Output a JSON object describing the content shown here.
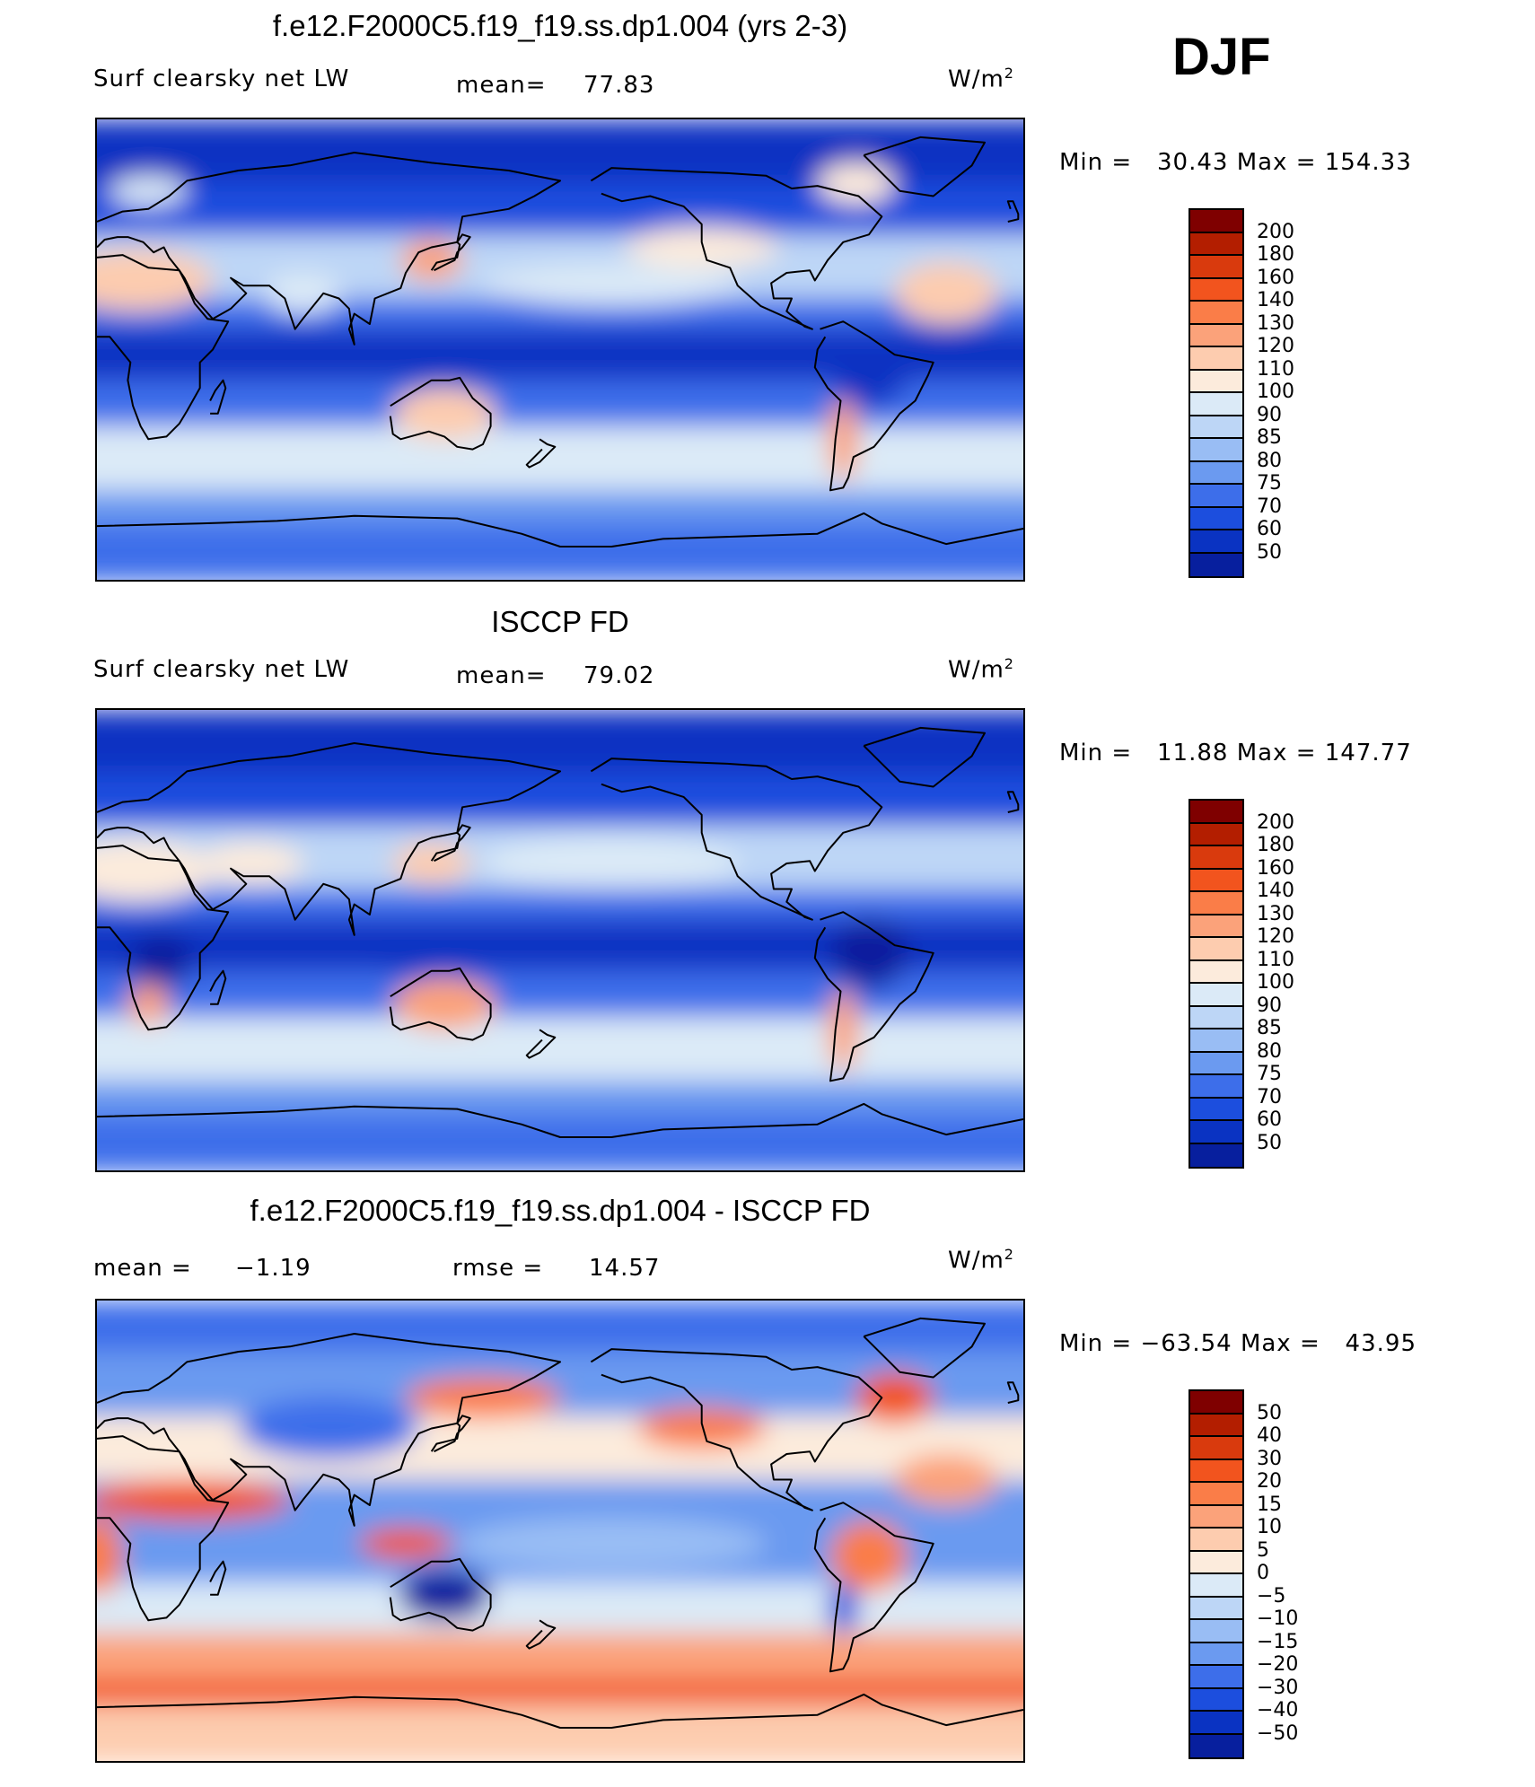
{
  "season": "DJF",
  "panels": [
    {
      "title": "f.e12.F2000C5.f19_f19.ss.dp1.004 (yrs 2-3)",
      "left_label": "Surf clearsky net LW",
      "mid_label": "mean=",
      "mid_value": "77.83",
      "right_value": "",
      "units": "W/m",
      "units_exp": "2",
      "min_label": "Min =",
      "min_value": "30.43",
      "max_label": "Max =",
      "max_value": "154.33",
      "levels": [
        "200",
        "180",
        "160",
        "140",
        "130",
        "120",
        "110",
        "100",
        "90",
        "85",
        "80",
        "75",
        "70",
        "60",
        "50"
      ],
      "colors": [
        "#7f0000",
        "#b31e00",
        "#d93a0d",
        "#f2541e",
        "#fa7d48",
        "#fba27a",
        "#fdccaf",
        "#fcebdc",
        "#dbeaf7",
        "#bdd6f6",
        "#99bdf4",
        "#6b9af0",
        "#3d6eea",
        "#1c4ede",
        "#0a33c2",
        "#071f9e"
      ],
      "map_style": "abs"
    },
    {
      "title": "ISCCP FD",
      "left_label": "Surf clearsky net LW",
      "mid_label": "mean=",
      "mid_value": "79.02",
      "right_value": "",
      "units": "W/m",
      "units_exp": "2",
      "min_label": "Min =",
      "min_value": "11.88",
      "max_label": "Max =",
      "max_value": "147.77",
      "levels": [
        "200",
        "180",
        "160",
        "140",
        "130",
        "120",
        "110",
        "100",
        "90",
        "85",
        "80",
        "75",
        "70",
        "60",
        "50"
      ],
      "colors": [
        "#7f0000",
        "#b31e00",
        "#d93a0d",
        "#f2541e",
        "#fa7d48",
        "#fba27a",
        "#fdccaf",
        "#fcebdc",
        "#dbeaf7",
        "#bdd6f6",
        "#99bdf4",
        "#6b9af0",
        "#3d6eea",
        "#1c4ede",
        "#0a33c2",
        "#071f9e"
      ],
      "map_style": "obs"
    },
    {
      "title": "f.e12.F2000C5.f19_f19.ss.dp1.004 - ISCCP FD",
      "left_label": "mean =",
      "left_value": "−1.19",
      "mid_label": "rmse =",
      "mid_value": "14.57",
      "units": "W/m",
      "units_exp": "2",
      "min_label": "Min =",
      "min_value": "−63.54",
      "max_label": "Max =",
      "max_value": "43.95",
      "levels": [
        "50",
        "40",
        "30",
        "20",
        "15",
        "10",
        "5",
        "0",
        "−5",
        "−10",
        "−15",
        "−20",
        "−30",
        "−40",
        "−50"
      ],
      "colors": [
        "#7f0000",
        "#b31e00",
        "#d93a0d",
        "#f2541e",
        "#fa7d48",
        "#fba27a",
        "#fdccaf",
        "#fcebdc",
        "#dbeaf7",
        "#bdd6f6",
        "#99bdf4",
        "#6b9af0",
        "#3d6eea",
        "#1c4ede",
        "#0a33c2",
        "#071f9e"
      ],
      "map_style": "diff"
    }
  ]
}
